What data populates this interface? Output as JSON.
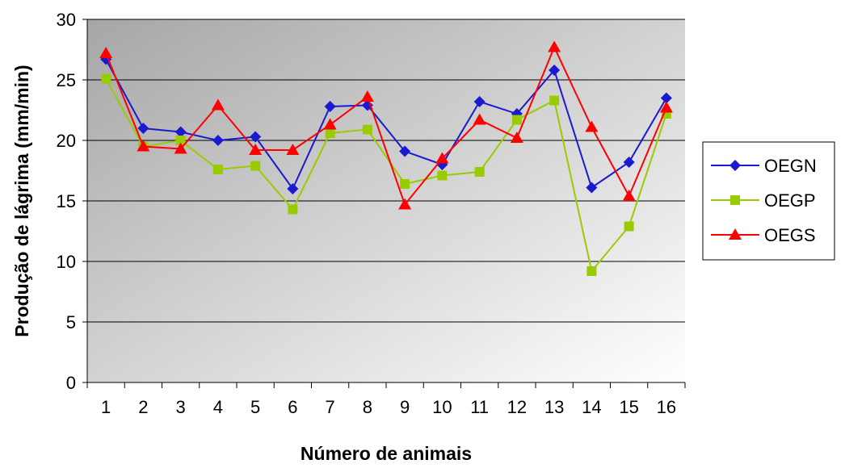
{
  "chart_data": {
    "type": "line",
    "title": "",
    "xlabel": "Número de animais",
    "ylabel": "Produção de lágrima (mm/min)",
    "categories": [
      "1",
      "2",
      "3",
      "4",
      "5",
      "6",
      "7",
      "8",
      "9",
      "10",
      "11",
      "12",
      "13",
      "14",
      "15",
      "16"
    ],
    "ylim": [
      0,
      30
    ],
    "yticks": [
      0,
      5,
      10,
      15,
      20,
      25,
      30
    ],
    "grid": true,
    "legend_position": "right",
    "series": [
      {
        "name": "OEGN",
        "color": "#1a1ad0",
        "marker": "diamond",
        "values": [
          26.7,
          21.0,
          20.7,
          20.0,
          20.3,
          16.0,
          22.8,
          22.9,
          19.1,
          18.0,
          23.2,
          22.2,
          25.8,
          16.1,
          18.2,
          23.5
        ]
      },
      {
        "name": "OEGP",
        "color": "#99cc00",
        "marker": "square",
        "values": [
          25.1,
          19.5,
          20.0,
          17.6,
          17.9,
          14.3,
          20.6,
          20.9,
          16.4,
          17.1,
          17.4,
          21.7,
          23.3,
          9.2,
          12.9,
          22.2
        ]
      },
      {
        "name": "OEGS",
        "color": "#ff0000",
        "marker": "triangle",
        "values": [
          27.2,
          19.5,
          19.3,
          22.9,
          19.2,
          19.2,
          21.3,
          23.6,
          14.7,
          18.5,
          21.7,
          20.2,
          27.7,
          21.1,
          15.4,
          22.7
        ]
      }
    ]
  }
}
